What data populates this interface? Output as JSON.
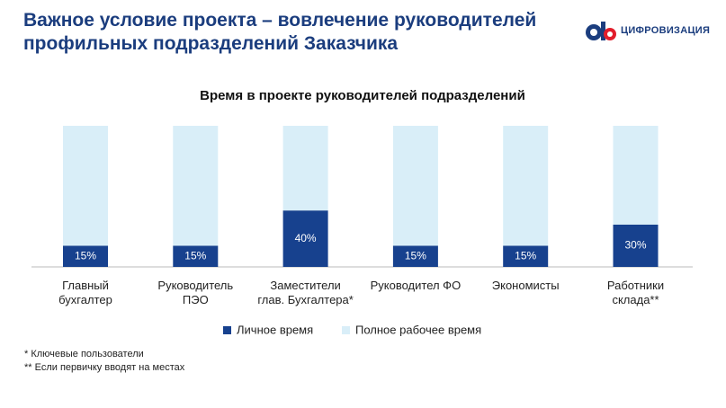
{
  "header": {
    "title": "Важное условие проекта – вовлечение руководителей\nпрофильных подразделений Заказчика",
    "logo": "ЦИФРОВИЗАЦИЯ"
  },
  "chart_data": {
    "type": "stacked_bar",
    "title": "Время в проекте руководителей подразделений",
    "categories": [
      "Главный\nбухгалтер",
      "Руководитель\nПЭО",
      "Заместители\nглав. Бухгалтера*",
      "Руководител ФО",
      "Экономисты",
      "Работники\nсклада**"
    ],
    "series": [
      {
        "name": "Личное время",
        "color": "#17418e",
        "values": [
          15,
          15,
          40,
          15,
          15,
          30
        ],
        "value_labels": [
          "15%",
          "15%",
          "40%",
          "15%",
          "15%",
          "30%"
        ]
      },
      {
        "name": "Полное рабочее время",
        "color": "#d9eef8",
        "values": [
          85,
          85,
          60,
          85,
          85,
          70
        ]
      }
    ],
    "ylim": [
      0,
      100
    ]
  },
  "footnotes": [
    "* Ключевые пользователи",
    "** Если первичку вводят на местах"
  ]
}
